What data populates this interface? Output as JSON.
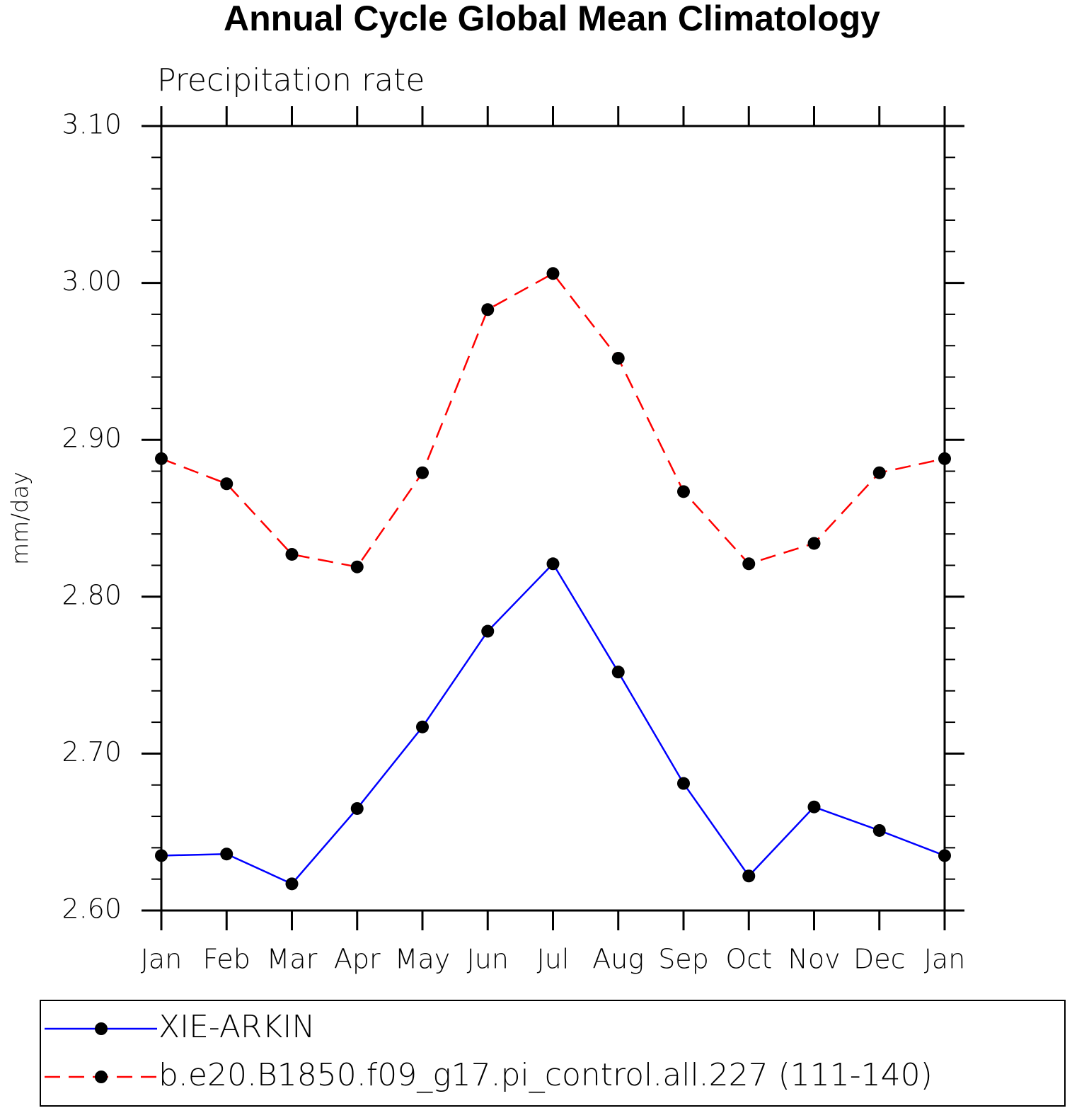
{
  "chart_data": {
    "type": "line",
    "title": "Annual Cycle Global Mean Climatology",
    "subtitle": "Precipitation rate",
    "y_label": "mm/day",
    "categories": [
      "Jan",
      "Feb",
      "Mar",
      "Apr",
      "May",
      "Jun",
      "Jul",
      "Aug",
      "Sep",
      "Oct",
      "Nov",
      "Dec",
      "Jan"
    ],
    "series": [
      {
        "name": "XIE-ARKIN",
        "color": "#0000ff",
        "dash": "solid",
        "values": [
          2.635,
          2.636,
          2.617,
          2.665,
          2.717,
          2.778,
          2.821,
          2.752,
          2.681,
          2.622,
          2.666,
          2.651,
          2.635
        ]
      },
      {
        "name": "b.e20.B1850.f09_g17.pi_control.all.227 (111-140)",
        "color": "#ff0000",
        "dash": "dashed",
        "values": [
          2.888,
          2.872,
          2.827,
          2.819,
          2.879,
          2.983,
          3.006,
          2.952,
          2.867,
          2.821,
          2.834,
          2.879,
          2.888
        ]
      }
    ],
    "ylim": [
      2.6,
      3.1
    ],
    "yticks": [
      {
        "value": 2.6,
        "label": "2.60"
      },
      {
        "value": 2.7,
        "label": "2.70"
      },
      {
        "value": 2.8,
        "label": "2.80"
      },
      {
        "value": 2.9,
        "label": "2.90"
      },
      {
        "value": 3.0,
        "label": "3.00"
      },
      {
        "value": 3.1,
        "label": "3.10"
      }
    ],
    "yminorticks": [
      2.62,
      2.64,
      2.66,
      2.68,
      2.72,
      2.74,
      2.76,
      2.78,
      2.82,
      2.84,
      2.86,
      2.88,
      2.92,
      2.94,
      2.96,
      2.98,
      3.02,
      3.04,
      3.06,
      3.08
    ],
    "grid": false
  }
}
